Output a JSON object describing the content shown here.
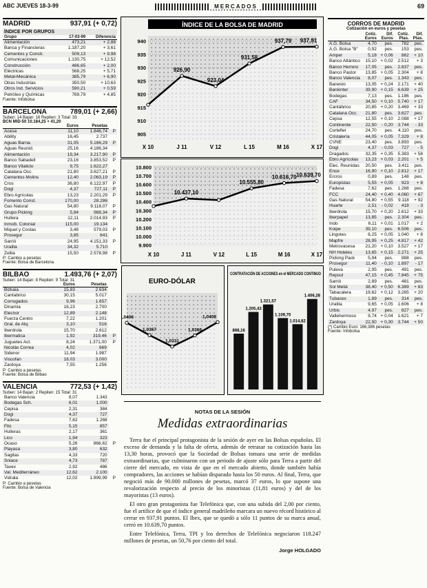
{
  "header": {
    "left": "ABC JUEVES 18-3-99",
    "banner": "MERCADOS",
    "page": "69"
  },
  "madrid": {
    "title": "MADRID",
    "value": "937,91",
    "change": "(+ 0,72)",
    "groups": {
      "title": "ÍNDICE POR GRUPOS",
      "columns": [
        "Grupo",
        "17-03-99",
        "Diferencia"
      ],
      "rows": [
        [
          "Alimentación",
          "473,21",
          "+ 2,88"
        ],
        [
          "Banca y Financieras",
          "1.187,20",
          "+ 3,61"
        ],
        [
          "Cementos y Constr.",
          "509,13",
          "+ 9,98"
        ],
        [
          "Comunicaciones",
          "1.130,75",
          "+ 12,52"
        ],
        [
          "Construcción",
          "486,65",
          "+ 2,00"
        ],
        [
          "Eléctricas",
          "568,25",
          "+ 5,71"
        ],
        [
          "Metal-Mecánica",
          "385,79",
          "+ 6,90"
        ],
        [
          "Otras Industrias",
          "350,50",
          "+ 10,63"
        ],
        [
          "Otros Ind. Servicios",
          "590,21",
          "+ 0,59"
        ],
        [
          "Petróleo y Químicas",
          "769,79",
          "+ 4,85"
        ]
      ]
    },
    "source": "Fuente: Infobolsa"
  },
  "barcelona": {
    "title": "BARCELONA",
    "value": "789,01",
    "change": "(+ 2,66)",
    "summary": "Suben: 14 Bajan: 16 Repiten: 3 Total: 33",
    "index": "BCN MID-50  10.184,25  + 41,20",
    "columns": [
      "Euros",
      "Pesetas"
    ],
    "rows": [
      [
        "Acesa",
        "11,10",
        "1.846,74",
        "P"
      ],
      [
        "Ability",
        "16,45",
        "2.737"
      ],
      [
        "Aguas Barna.",
        "31,05",
        "5.166,29",
        "P"
      ],
      [
        "Aguas Reunid.",
        "25,16",
        "4.186,34"
      ],
      [
        "Alimentación",
        "19,34",
        "3.217,90",
        "P"
      ],
      [
        "Banco Sabadell",
        "23,16",
        "3.853,52",
        "P"
      ],
      [
        "Banco Vitalicio",
        "9,75",
        "1.622,27"
      ],
      [
        "Catalana Occ.",
        "21,80",
        "3.627,21",
        "P"
      ],
      [
        "Cementos Molins",
        "12,40",
        "2.063,19",
        "P"
      ],
      [
        "Cros",
        "36,80",
        "6.122,97",
        "P"
      ],
      [
        "Dogi",
        "4,37",
        "727,11",
        "P"
      ],
      [
        "Ebro Agrícolas",
        "13,23",
        "2.201,29",
        "P"
      ],
      [
        "Fomento Const.",
        "170,00",
        "28.286"
      ],
      [
        "Gas Natural",
        "54,80",
        "9.118,07",
        "P"
      ],
      [
        "Grupo Picking",
        "5,94",
        "988,34",
        "P"
      ],
      [
        "Hullera",
        "12,11",
        "2.014,93",
        "P"
      ],
      [
        "Inmob. Colonial",
        "115,00",
        "19.134"
      ],
      [
        "Miquel y Costas",
        "3,48",
        "579,03",
        "P"
      ],
      [
        "Prosegur",
        "3,85",
        "641"
      ],
      [
        "Sarrió",
        "24,95",
        "4.151,33",
        "P"
      ],
      [
        "Uralita",
        "34,32",
        "5.710"
      ],
      [
        "Zeltia",
        "15,50",
        "2.578,98",
        "P"
      ]
    ],
    "notes": [
      "P: Cambio a pesetas",
      "Fuente: Bolsa de Barcelona"
    ]
  },
  "bilbao": {
    "title": "BILBAO",
    "value": "1.493,76",
    "change": "(+ 2,07)",
    "summary": "Suben: 14 Bajan: 8 Repiten: 9 Total: 31",
    "columns": [
      "Euros",
      "Pesetas"
    ],
    "rows": [
      [
        "Bizkaia",
        "15,83",
        "2.634"
      ],
      [
        "Cantabrico",
        "30,15",
        "5.017"
      ],
      [
        "Corrugados",
        "9,96",
        "1.657"
      ],
      [
        "Dinamia",
        "16,23",
        "2.700"
      ],
      [
        "Elecnor",
        "12,89",
        "2.148"
      ],
      [
        "Fuerza Centro",
        "7,22",
        "1.201"
      ],
      [
        "Gral. de Alq.",
        "3,10",
        "516"
      ],
      [
        "Iberdrola",
        "15,70",
        "2.612"
      ],
      [
        "Ibermatica",
        "1,92",
        "319,46",
        "P"
      ],
      [
        "Juguetes Act.",
        "8,24",
        "1.371,00",
        "P"
      ],
      [
        "Nicolás Correa",
        "4,02",
        "669"
      ],
      [
        "Sidenor",
        "11,94",
        "1.987"
      ],
      [
        "Viscofan",
        "18,03",
        "3.000"
      ],
      [
        "Zardoya",
        "7,55",
        "1.256"
      ]
    ],
    "notes": [
      "P: Cambio a pesetas",
      "Fuente: Bolsa de Bilbao"
    ]
  },
  "valencia": {
    "title": "VALENCIA",
    "value": "772,53",
    "change": "(+ 1,42)",
    "summary": "Suben: 14 Bajan: 2 Repiten: 15 Total: 31",
    "rows": [
      [
        "Banco Valencia",
        "8,07",
        "1.343"
      ],
      [
        "Bodegas Sch.",
        "6,01",
        "1.000"
      ],
      [
        "Cepisa",
        "2,31",
        "384"
      ],
      [
        "Dogi",
        "4,37",
        "727"
      ],
      [
        "Fadesa",
        "7,62",
        "1.268"
      ],
      [
        "Filo",
        "5,15",
        "857"
      ],
      [
        "Hulleras",
        "2,17",
        "361"
      ],
      [
        "Lico",
        "1,94",
        "323"
      ],
      [
        "Ocaso",
        "5,26",
        "866,62",
        "P"
      ],
      [
        "Playasa",
        "3,80",
        "632"
      ],
      [
        "Sagitas",
        "4,33",
        "720"
      ],
      [
        "Sniace",
        "4,73",
        "787"
      ],
      [
        "Tavex",
        "2,92",
        "486"
      ],
      [
        "Val. Mediterráneo",
        "12,62",
        "2.100"
      ],
      [
        "Vidrala",
        "12,02",
        "1.999,99",
        "P"
      ]
    ],
    "notes": [
      "P: Cambio a pesetas",
      "Fuente: Bolsa de Valencia"
    ]
  },
  "madrid_chart": {
    "type": "line",
    "title": "ÍNDICE DE LA BOLSA DE MADRID",
    "categories": [
      "X 10",
      "J 11",
      "V 12",
      "L 15",
      "M 16",
      "X 17"
    ],
    "values": [
      916,
      926.9,
      923.04,
      931.58,
      937.79,
      937.91
    ],
    "value_labels": [
      null,
      "926,90",
      "923,04",
      "931,58",
      "937,79",
      "937,91"
    ],
    "ylim": [
      903,
      942
    ],
    "yticks": [
      905,
      910,
      915,
      920,
      925,
      930,
      935,
      940
    ],
    "color": "#000000"
  },
  "ibex_chart": {
    "type": "line",
    "title": "IBEX 35",
    "categories": [
      "X 10",
      "J 11",
      "V 12",
      "L 15",
      "M 16",
      "X 17"
    ],
    "values": [
      10350,
      10437.1,
      10420,
      10555.8,
      10616.7,
      10639.7
    ],
    "value_labels": [
      null,
      "10.437,10",
      null,
      "10.555,80",
      "10.616,70",
      "10.639,70"
    ],
    "ylim": [
      9880,
      10820
    ],
    "yticks": [
      {
        "value": 9900,
        "label": "9.900"
      },
      {
        "value": 10000,
        "label": "10.000"
      },
      {
        "value": 10100,
        "label": "10.100"
      },
      {
        "value": 10200,
        "label": "10.200"
      },
      {
        "value": 10300,
        "label": "10.300"
      },
      {
        "value": 10400,
        "label": "10.400"
      },
      {
        "value": 10500,
        "label": "10.500"
      },
      {
        "value": 10600,
        "label": "10.600"
      },
      {
        "value": 10700,
        "label": "10.700"
      },
      {
        "value": 10800,
        "label": "10.800"
      }
    ],
    "color": "#000000"
  },
  "eurodolar_chart": {
    "type": "line",
    "title": "EURO-DÓLAR",
    "values": [
      1.0406,
      1.0367,
      1.0331,
      1.0366,
      1.0408
    ],
    "value_labels": [
      "1,0406",
      "1,0367",
      "1,0331",
      "1,0366",
      "1,0408"
    ],
    "ylim": [
      1.02,
      1.05
    ],
    "color": "#000000"
  },
  "contratacion_chart": {
    "type": "bar",
    "title": "CONTRATACIÓN DE ACCIONES en el MERCADO CONTINUO",
    "values": [
      868.16,
      1205.43,
      1321.57,
      1109.7,
      1014.82,
      1406.28
    ],
    "value_labels": [
      "868,16",
      "1.205,43",
      "1.321,57",
      "1.109,70",
      "1.014,82",
      "1.406,28"
    ],
    "ylim": [
      0,
      1500
    ],
    "color": "#111111"
  },
  "article": {
    "kicker": "NOTAS DE LA SESIÓN",
    "title": "Medidas extraordinarias",
    "paragraphs": [
      "Terra fue el principal protagonista de la sesión de ayer en las Bolsas españolas. El exceso de demanda y la falta de oferta, además de retrasar su cotización hasta las 13,30 horas, provocó que la Sociedad de Bolsas tomara una serie de medidas extraordinarias, que culminaron con un periodo de ajuste sólo para Terra a partir del cierre del mercado, en vista de que en el mercado abierto, donde también había compradores, las acciones se habían disparado hasta los 50 euros. Al final, Terra, que negoció más de 90.000 millones de pesetas, marcó 37 euros, lo que supone una revalorización respecto al precio de los minoristas (11,81 euros) y del de los mayoristas (13 euros).",
      "El otro gran protagonista fue Telefónica que, con una subida del 2,00 por ciento, fue el artífice de que el índice general madrileño marcara un nuevo récord histórico al cerrar en 937,91 puntos. El Ibex, que se quedó a sólo 11 puntos de su marca anual, cerró en 10.639,70 puntos.",
      "Entre Telefónica, Terra, TPI y los derechos de Telefónica negociaron 118.247 millones de pesetas, un 50,76 por ciento del total."
    ],
    "author": "Jorge HOLGADO"
  },
  "corros": {
    "title": "CORROS DE MADRID",
    "subtitle": "Cotización en euros y pesetas",
    "columns": [
      "Cotiz. Euros",
      "Dif. Euros",
      "Cotiz. Ptas.",
      "Dif. Ptas."
    ],
    "rows": [
      [
        "A.G. Bolsa",
        "4,70",
        "pes.",
        "782",
        "pes."
      ],
      [
        "A.G. Bolsa \"B\"",
        "0,92",
        "pes.",
        "153",
        "pes."
      ],
      [
        "Amper",
        "5,18",
        "+ 0,06",
        "862",
        "+ 10"
      ],
      [
        "Banco Atlántico",
        "15,10",
        "+ 0,02",
        "2.512",
        "+ 3"
      ],
      [
        "Banco Herrero",
        "17,05",
        "pes.",
        "2.837",
        "pes."
      ],
      [
        "Banco Pastor",
        "13,85",
        "+ 0,05",
        "2.304",
        "+ 8"
      ],
      [
        "Banco Valencia",
        "8,07",
        "pes.",
        "1.343",
        "pes."
      ],
      [
        "Banesto",
        "13,05",
        "+ 0,24",
        "2.171",
        "+ 40"
      ],
      [
        "Bankinter",
        "39,90",
        "+ 0,15",
        "6.639",
        "+ 25"
      ],
      [
        "Bodegas",
        "7,13",
        "pes.",
        "1.186",
        "pes."
      ],
      [
        "CAF",
        "34,50",
        "+ 0,10",
        "5.740",
        "+ 17"
      ],
      [
        "Cantábrico",
        "20,85",
        "+ 0,20",
        "3.469",
        "+ 33"
      ],
      [
        "Catalana Occ.",
        "21,80",
        "pes.",
        "3.627",
        "pes."
      ],
      [
        "Cepsa",
        "12,55",
        "+ 0,10",
        "2.088",
        "+ 17"
      ],
      [
        "Continente",
        "22,50",
        "- 0,20",
        "3.744",
        "- 33"
      ],
      [
        "Cortefiel",
        "24,70",
        "pes.",
        "4.110",
        "pes."
      ],
      [
        "Cristalería",
        "44,05",
        "+ 0,05",
        "7.329",
        "+ 8"
      ],
      [
        "CVNE",
        "23,40",
        "pes.",
        "3.893",
        "pes."
      ],
      [
        "Dogi",
        "4,37",
        "- 0,03",
        "727",
        "- 5"
      ],
      [
        "Dragados",
        "32,35",
        "+ 0,35",
        "5.383",
        "+ 58"
      ],
      [
        "Ebro Agrícolas",
        "13,23",
        "+ 0,03",
        "2.201",
        "+ 5"
      ],
      [
        "Elec. Reunidas",
        "20,50",
        "pes.",
        "3.411",
        "pes."
      ],
      [
        "Ence",
        "16,90",
        "+ 0,10",
        "2.812",
        "+ 17"
      ],
      [
        "Ercros",
        "0,89",
        "pes.",
        "148",
        "pes."
      ],
      [
        "Europistas",
        "5,55",
        "+ 0,05",
        "923",
        "+ 8"
      ],
      [
        "Fadesa",
        "7,62",
        "pes.",
        "1.268",
        "pes."
      ],
      [
        "FCC",
        "24,40",
        "+ 0,40",
        "4.060",
        "+ 67"
      ],
      [
        "Gas Natural",
        "54,80",
        "+ 0,55",
        "9.118",
        "+ 92"
      ],
      [
        "Huarte",
        "2,51",
        "- 0,02",
        "418",
        "- 3"
      ],
      [
        "Iberdrola",
        "15,70",
        "+ 0,20",
        "2.612",
        "+ 33"
      ],
      [
        "Iberpapel",
        "13,85",
        "pes.",
        "2.304",
        "pes."
      ],
      [
        "Indo",
        "6,11",
        "+ 0,01",
        "1.017",
        "+ 2"
      ],
      [
        "Koipe",
        "39,10",
        "pes.",
        "6.506",
        "pes."
      ],
      [
        "Lingotes",
        "6,25",
        "+ 0,05",
        "1.040",
        "+ 8"
      ],
      [
        "Mapfre",
        "28,95",
        "+ 0,25",
        "4.817",
        "+ 42"
      ],
      [
        "Metrovacesa",
        "21,20",
        "+ 0,10",
        "3.527",
        "+ 17"
      ],
      [
        "NH Hoteles",
        "13,65",
        "+ 0,15",
        "2.271",
        "+ 25"
      ],
      [
        "Picking Pack",
        "5,94",
        "pes.",
        "988",
        "pes."
      ],
      [
        "Prosegur",
        "11,40",
        "- 0,10",
        "1.897",
        "- 17"
      ],
      [
        "Puleva",
        "2,95",
        "pes.",
        "491",
        "pes."
      ],
      [
        "Repsol",
        "47,15",
        "+ 0,45",
        "7.845",
        "+ 75"
      ],
      [
        "Sarrió",
        "2,89",
        "pes.",
        "481",
        "pes."
      ],
      [
        "Sol Meliá",
        "38,40",
        "+ 0,50",
        "6.389",
        "+ 83"
      ],
      [
        "Tabacalera",
        "19,62",
        "+ 0,12",
        "3.265",
        "+ 20"
      ],
      [
        "Tubacex",
        "1,89",
        "pes.",
        "314",
        "pes."
      ],
      [
        "Uralita",
        "9,65",
        "+ 0,05",
        "1.606",
        "+ 8"
      ],
      [
        "Urbis",
        "4,97",
        "pes.",
        "827",
        "pes."
      ],
      [
        "Vallehermoso",
        "9,74",
        "+ 0,04",
        "1.621",
        "+ 7"
      ],
      [
        "Zardoya",
        "22,50",
        "+ 0,30",
        "3.744",
        "+ 50"
      ]
    ],
    "notes": [
      "(*) Cambio Euro: 166,386 pesetas",
      "Fuente: Infobolsa"
    ]
  }
}
